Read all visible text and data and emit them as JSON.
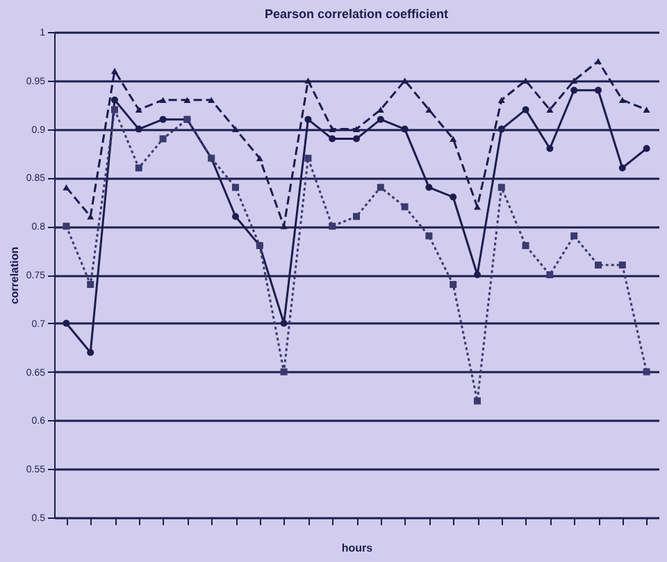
{
  "chart_data": {
    "type": "line",
    "title": "Pearson correlation coefficient",
    "xlabel": "hours",
    "ylabel": "correlation",
    "categories": [
      null,
      null,
      null,
      null,
      null,
      null,
      null,
      null,
      null,
      null,
      null,
      null,
      null,
      null,
      null,
      null,
      null,
      null,
      null,
      null,
      null,
      null,
      null,
      null,
      null
    ],
    "series": [
      {
        "color": "#1c1c4e",
        "marker": "triangle",
        "line_style": "dashed",
        "values": [
          0.84,
          0.81,
          0.96,
          0.92,
          0.93,
          0.93,
          0.93,
          0.9,
          0.87,
          0.8,
          0.95,
          0.9,
          0.9,
          0.92,
          0.95,
          0.92,
          0.89,
          0.82,
          0.93,
          0.95,
          0.92,
          0.95,
          0.97,
          0.93,
          0.92
        ]
      },
      {
        "color": "#1c1c4e",
        "marker": "circle",
        "line_style": "solid",
        "values": [
          0.7,
          0.67,
          0.93,
          0.9,
          0.91,
          0.91,
          0.87,
          0.81,
          0.78,
          0.7,
          0.91,
          0.89,
          0.89,
          0.91,
          0.9,
          0.84,
          0.83,
          0.75,
          0.9,
          0.92,
          0.88,
          0.94,
          0.94,
          0.86,
          0.88
        ]
      },
      {
        "color": "#3a3a6e",
        "marker": "square",
        "line_style": "dotted",
        "values": [
          0.8,
          0.74,
          0.92,
          0.86,
          0.89,
          0.91,
          0.87,
          0.84,
          0.78,
          0.65,
          0.87,
          0.8,
          0.81,
          0.84,
          0.82,
          0.79,
          0.74,
          0.62,
          0.84,
          0.78,
          0.75,
          0.79,
          0.76,
          0.76,
          0.65
        ]
      }
    ],
    "ylim": [
      0.5,
      1
    ],
    "yticks": [
      0.5,
      0.55,
      0.6,
      0.65,
      0.7,
      0.75,
      0.8,
      0.85,
      0.9,
      0.95,
      1
    ],
    "grid": "y"
  }
}
